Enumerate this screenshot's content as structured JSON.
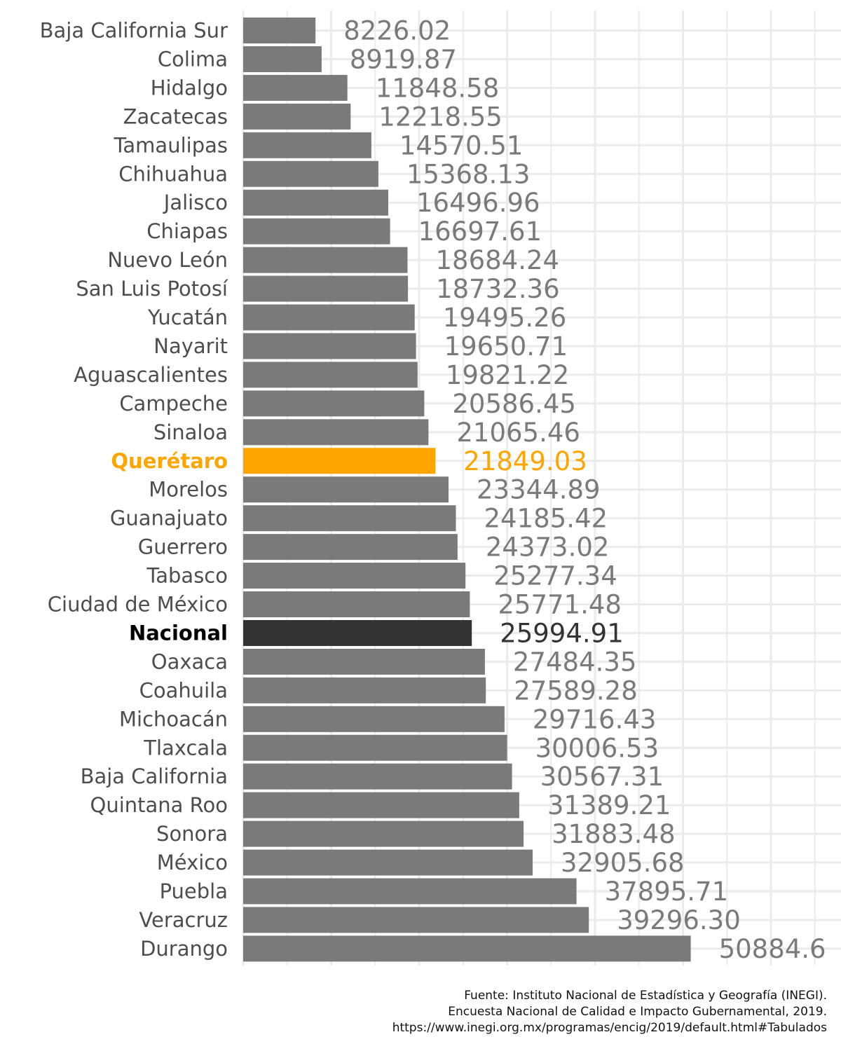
{
  "chart_data": {
    "type": "bar",
    "orientation": "horizontal",
    "categories": [
      "Baja California Sur",
      "Colima",
      "Hidalgo",
      "Zacatecas",
      "Tamaulipas",
      "Chihuahua",
      "Jalisco",
      "Chiapas",
      "Nuevo León",
      "San Luis Potosí",
      "Yucatán",
      "Nayarit",
      "Aguascalientes",
      "Campeche",
      "Sinaloa",
      "Querétaro",
      "Morelos",
      "Guanajuato",
      "Guerrero",
      "Tabasco",
      "Ciudad de México",
      "Nacional",
      "Oaxaca",
      "Coahuila",
      "Michoacán",
      "Tlaxcala",
      "Baja California",
      "Quintana Roo",
      "Sonora",
      "México",
      "Puebla",
      "Veracruz",
      "Durango"
    ],
    "values": [
      8226.02,
      8919.87,
      11848.58,
      12218.55,
      14570.51,
      15368.13,
      16496.96,
      16697.61,
      18684.24,
      18732.36,
      19495.26,
      19650.71,
      19821.22,
      20586.45,
      21065.46,
      21849.03,
      23344.89,
      24185.42,
      24373.02,
      25277.34,
      25771.48,
      25994.91,
      27484.35,
      27589.28,
      29716.43,
      30006.53,
      30567.31,
      31389.21,
      31883.48,
      32905.68,
      37895.71,
      39296.3,
      50884.6
    ],
    "value_labels": [
      "8226.02",
      "8919.87",
      "11848.58",
      "12218.55",
      "14570.51",
      "15368.13",
      "16496.96",
      "16697.61",
      "18684.24",
      "18732.36",
      "19495.26",
      "19650.71",
      "19821.22",
      "20586.45",
      "21065.46",
      "21849.03",
      "23344.89",
      "24185.42",
      "24373.02",
      "25277.34",
      "25771.48",
      "25994.91",
      "27484.35",
      "27589.28",
      "29716.43",
      "30006.53",
      "30567.31",
      "31389.21",
      "31883.48",
      "32905.68",
      "37895.71",
      "39296.30",
      "50884.6"
    ],
    "highlight": {
      "Querétaro": "#FFA500",
      "Nacional": "#333333"
    },
    "bold_categories": [
      "Querétaro",
      "Nacional"
    ],
    "default_bar_color": "#7a7a7a",
    "default_label_color": "#7a7a7a",
    "category_text_color": "#4d4d4d",
    "xlim": [
      0,
      65000
    ],
    "grid": true,
    "x_tick_labels_shown": false,
    "title": "",
    "xlabel": "",
    "ylabel": ""
  },
  "caption": {
    "line1": "Fuente: Instituto Nacional de Estadística y Geografía (INEGI).",
    "line2": "Encuesta Nacional de Calidad e Impacto Gubernamental, 2019.",
    "line3": "https://www.inegi.org.mx/programas/encig/2019/default.html#Tabulados"
  }
}
